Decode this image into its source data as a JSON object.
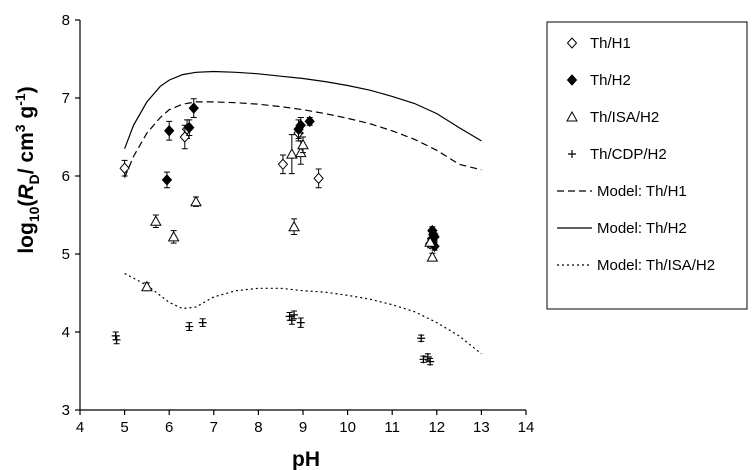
{
  "chart_data": {
    "type": "scatter",
    "xlabel": "pH",
    "ylabel_parts": {
      "prefix": "log",
      "sub1": "10",
      "open": "(",
      "var": "R",
      "sub2": "D",
      "unit_a": "/ cm",
      "sup1": "3",
      "unit_b": " g",
      "sup2": "-1",
      "close": ")"
    },
    "xlim": [
      4,
      14
    ],
    "ylim": [
      3,
      8
    ],
    "xticks": [
      "4",
      "5",
      "6",
      "7",
      "8",
      "9",
      "10",
      "11",
      "12",
      "13",
      "14"
    ],
    "yticks": [
      "3",
      "4",
      "5",
      "6",
      "7",
      "8"
    ],
    "grid": false,
    "legend_position": "right",
    "series": [
      {
        "name": "Th/H1",
        "marker": "diamond-open",
        "points": [
          {
            "x": 5.0,
            "y": 6.1,
            "err": 0.1
          },
          {
            "x": 6.4,
            "y": 6.6,
            "err": 0.12
          },
          {
            "x": 6.35,
            "y": 6.5,
            "err": 0.15
          },
          {
            "x": 8.55,
            "y": 6.15,
            "err": 0.12
          },
          {
            "x": 8.9,
            "y": 6.55,
            "err": 0.1
          },
          {
            "x": 9.35,
            "y": 5.97,
            "err": 0.12
          },
          {
            "x": 11.85,
            "y": 5.13,
            "err": 0.05
          },
          {
            "x": 11.9,
            "y": 5.2,
            "err": 0.05
          }
        ]
      },
      {
        "name": "Th/H2",
        "marker": "diamond-filled",
        "points": [
          {
            "x": 5.95,
            "y": 5.95,
            "err": 0.1
          },
          {
            "x": 6.0,
            "y": 6.58,
            "err": 0.12
          },
          {
            "x": 6.45,
            "y": 6.62,
            "err": 0.1
          },
          {
            "x": 6.55,
            "y": 6.87,
            "err": 0.12
          },
          {
            "x": 8.9,
            "y": 6.6,
            "err": 0.12
          },
          {
            "x": 8.95,
            "y": 6.65,
            "err": 0.1
          },
          {
            "x": 9.15,
            "y": 6.7,
            "err": 0.05
          },
          {
            "x": 11.9,
            "y": 5.3,
            "err": 0.05
          },
          {
            "x": 11.95,
            "y": 5.22,
            "err": 0.05
          },
          {
            "x": 11.9,
            "y": 5.15,
            "err": 0.05
          },
          {
            "x": 11.95,
            "y": 5.1,
            "err": 0.05
          },
          {
            "x": 11.92,
            "y": 5.25,
            "err": 0.05
          }
        ]
      },
      {
        "name": "Th/ISA/H2",
        "marker": "triangle-open",
        "points": [
          {
            "x": 5.5,
            "y": 4.58,
            "err": 0.05
          },
          {
            "x": 5.7,
            "y": 5.42,
            "err": 0.08
          },
          {
            "x": 6.1,
            "y": 5.22,
            "err": 0.08
          },
          {
            "x": 6.6,
            "y": 5.67,
            "err": 0.06
          },
          {
            "x": 8.75,
            "y": 6.28,
            "err": 0.25
          },
          {
            "x": 8.8,
            "y": 5.35,
            "err": 0.1
          },
          {
            "x": 8.95,
            "y": 6.3,
            "err": 0.15
          },
          {
            "x": 9.0,
            "y": 6.4,
            "err": 0.1
          },
          {
            "x": 11.85,
            "y": 5.15,
            "err": 0.05
          },
          {
            "x": 11.9,
            "y": 4.96,
            "err": 0.05
          }
        ]
      },
      {
        "name": "Th/CDP/H2",
        "marker": "plus",
        "points": [
          {
            "x": 4.8,
            "y": 3.95,
            "err": 0.05
          },
          {
            "x": 4.82,
            "y": 3.9,
            "err": 0.05
          },
          {
            "x": 6.45,
            "y": 4.07,
            "err": 0.05
          },
          {
            "x": 6.75,
            "y": 4.12,
            "err": 0.05
          },
          {
            "x": 8.7,
            "y": 4.2,
            "err": 0.05
          },
          {
            "x": 8.75,
            "y": 4.15,
            "err": 0.05
          },
          {
            "x": 8.8,
            "y": 4.22,
            "err": 0.05
          },
          {
            "x": 8.95,
            "y": 4.12,
            "err": 0.06
          },
          {
            "x": 11.65,
            "y": 3.92,
            "err": 0.04
          },
          {
            "x": 11.7,
            "y": 3.65,
            "err": 0.04
          },
          {
            "x": 11.8,
            "y": 3.68,
            "err": 0.04
          },
          {
            "x": 11.85,
            "y": 3.62,
            "err": 0.04
          }
        ]
      },
      {
        "name": "Model: Th/H1",
        "type": "line",
        "style": "dashed",
        "x": [
          5.0,
          5.2,
          5.5,
          5.8,
          6.0,
          6.3,
          6.6,
          7.0,
          7.5,
          8.0,
          8.5,
          9.0,
          9.5,
          10.0,
          10.5,
          11.0,
          11.5,
          12.0,
          12.5,
          13.0
        ],
        "y": [
          5.98,
          6.25,
          6.55,
          6.75,
          6.85,
          6.92,
          6.95,
          6.95,
          6.94,
          6.92,
          6.89,
          6.85,
          6.8,
          6.74,
          6.67,
          6.58,
          6.47,
          6.33,
          6.15,
          6.08
        ]
      },
      {
        "name": "Model: Th/H2",
        "type": "line",
        "style": "solid",
        "x": [
          5.0,
          5.2,
          5.5,
          5.8,
          6.0,
          6.3,
          6.6,
          7.0,
          7.5,
          8.0,
          8.5,
          9.0,
          9.5,
          10.0,
          10.5,
          11.0,
          11.5,
          12.0,
          12.5,
          13.0
        ],
        "y": [
          6.35,
          6.65,
          6.95,
          7.15,
          7.23,
          7.3,
          7.33,
          7.34,
          7.33,
          7.31,
          7.28,
          7.25,
          7.21,
          7.16,
          7.1,
          7.02,
          6.93,
          6.8,
          6.62,
          6.45
        ]
      },
      {
        "name": "Model: Th/ISA/H2",
        "type": "line",
        "style": "dotted",
        "x": [
          5.0,
          5.5,
          6.0,
          6.3,
          6.6,
          7.0,
          7.5,
          8.0,
          8.5,
          9.0,
          9.5,
          10.0,
          10.5,
          11.0,
          11.5,
          12.0,
          12.5,
          13.0
        ],
        "y": [
          4.75,
          4.6,
          4.38,
          4.3,
          4.32,
          4.45,
          4.53,
          4.56,
          4.56,
          4.53,
          4.51,
          4.47,
          4.42,
          4.35,
          4.26,
          4.12,
          3.95,
          3.72
        ]
      }
    ]
  }
}
